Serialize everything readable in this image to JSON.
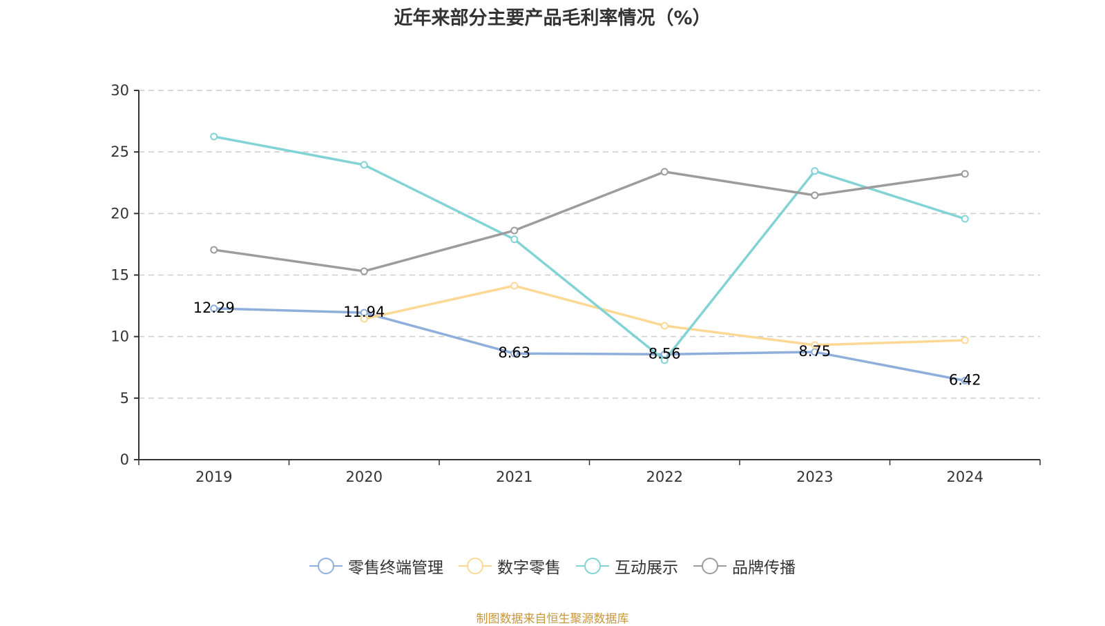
{
  "chart_data": {
    "type": "line",
    "title": "近年来部分主要产品毛利率情况（%）",
    "xlabel": "",
    "ylabel": "",
    "categories": [
      "2019",
      "2020",
      "2021",
      "2022",
      "2023",
      "2024"
    ],
    "ylim": [
      0,
      30
    ],
    "yticks": [
      0,
      5,
      10,
      15,
      20,
      25,
      30
    ],
    "grid": true,
    "legend_position": "bottom",
    "series": [
      {
        "name": "零售终端管理",
        "color": "#8eaedc",
        "values": [
          12.29,
          11.94,
          8.63,
          8.56,
          8.75,
          6.42
        ],
        "show_labels": true
      },
      {
        "name": "数字零售",
        "color": "#fdd894",
        "values": [
          null,
          11.44,
          14.13,
          10.88,
          9.31,
          9.7
        ],
        "show_labels": false
      },
      {
        "name": "互动展示",
        "color": "#82d3d5",
        "values": [
          26.25,
          23.95,
          17.9,
          8.08,
          23.45,
          19.57
        ],
        "show_labels": false
      },
      {
        "name": "品牌传播",
        "color": "#9c9c9c",
        "values": [
          17.05,
          15.31,
          18.62,
          23.39,
          21.48,
          23.22
        ],
        "show_labels": false
      }
    ]
  },
  "source_note": "制图数据来自恒生聚源数据库"
}
